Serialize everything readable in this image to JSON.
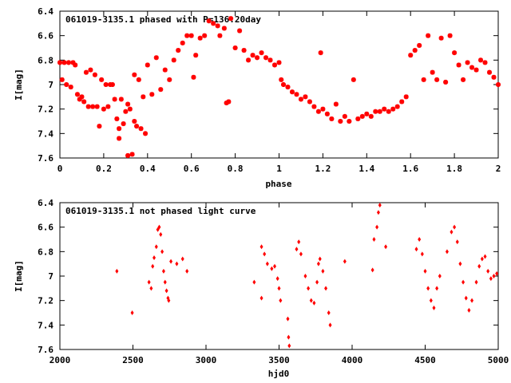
{
  "chart_data": [
    {
      "type": "scatter",
      "title": "061019-3135.1 phased with P=136.20day",
      "xlabel": "phase",
      "ylabel": "I[mag]",
      "xlim": [
        0,
        2
      ],
      "ylim": [
        7.6,
        6.4
      ],
      "y_inverted": true,
      "grid": false,
      "marker_color": "#ff0000",
      "marker": "star",
      "x_ticks": [
        "0",
        "0.2",
        "0.4",
        "0.6",
        "0.8",
        "1",
        "1.2",
        "1.4",
        "1.6",
        "1.8",
        "2"
      ],
      "y_ticks": [
        "6.4",
        "6.6",
        "6.8",
        "7",
        "7.2",
        "7.4",
        "7.6"
      ],
      "points": [
        [
          0.0,
          6.82
        ],
        [
          0.01,
          6.96
        ],
        [
          0.02,
          6.82
        ],
        [
          0.03,
          7.0
        ],
        [
          0.04,
          6.82
        ],
        [
          0.05,
          7.02
        ],
        [
          0.06,
          6.82
        ],
        [
          0.07,
          6.84
        ],
        [
          0.08,
          7.08
        ],
        [
          0.09,
          7.12
        ],
        [
          0.1,
          7.1
        ],
        [
          0.11,
          7.14
        ],
        [
          0.12,
          6.9
        ],
        [
          0.13,
          7.18
        ],
        [
          0.14,
          6.88
        ],
        [
          0.15,
          7.18
        ],
        [
          0.16,
          6.92
        ],
        [
          0.17,
          7.18
        ],
        [
          0.18,
          7.34
        ],
        [
          0.19,
          6.96
        ],
        [
          0.2,
          7.2
        ],
        [
          0.21,
          7.0
        ],
        [
          0.22,
          7.18
        ],
        [
          0.23,
          7.0
        ],
        [
          0.24,
          7.0
        ],
        [
          0.25,
          7.12
        ],
        [
          0.26,
          7.28
        ],
        [
          0.27,
          7.44
        ],
        [
          0.27,
          7.36
        ],
        [
          0.28,
          7.12
        ],
        [
          0.29,
          7.32
        ],
        [
          0.3,
          7.22
        ],
        [
          0.31,
          7.16
        ],
        [
          0.31,
          7.58
        ],
        [
          0.32,
          7.2
        ],
        [
          0.33,
          7.57
        ],
        [
          0.34,
          6.92
        ],
        [
          0.34,
          7.3
        ],
        [
          0.35,
          7.34
        ],
        [
          0.36,
          6.96
        ],
        [
          0.37,
          7.36
        ],
        [
          0.38,
          7.1
        ],
        [
          0.39,
          7.4
        ],
        [
          0.4,
          6.84
        ],
        [
          0.42,
          7.08
        ],
        [
          0.44,
          6.78
        ],
        [
          0.46,
          7.04
        ],
        [
          0.48,
          6.88
        ],
        [
          0.5,
          6.96
        ],
        [
          0.52,
          6.8
        ],
        [
          0.54,
          6.72
        ],
        [
          0.56,
          6.66
        ],
        [
          0.58,
          6.6
        ],
        [
          0.6,
          6.6
        ],
        [
          0.61,
          6.94
        ],
        [
          0.62,
          6.76
        ],
        [
          0.64,
          6.62
        ],
        [
          0.66,
          6.6
        ],
        [
          0.68,
          6.48
        ],
        [
          0.7,
          6.5
        ],
        [
          0.72,
          6.52
        ],
        [
          0.73,
          6.6
        ],
        [
          0.75,
          6.54
        ],
        [
          0.76,
          7.15
        ],
        [
          0.77,
          7.14
        ],
        [
          0.78,
          6.46
        ],
        [
          0.8,
          6.7
        ],
        [
          0.82,
          6.56
        ],
        [
          0.84,
          6.72
        ],
        [
          0.86,
          6.8
        ],
        [
          0.88,
          6.76
        ],
        [
          0.9,
          6.78
        ],
        [
          0.92,
          6.74
        ],
        [
          0.94,
          6.78
        ],
        [
          0.96,
          6.8
        ],
        [
          0.98,
          6.84
        ],
        [
          1.0,
          6.82
        ],
        [
          1.01,
          6.96
        ],
        [
          1.02,
          7.0
        ],
        [
          1.04,
          7.02
        ],
        [
          1.06,
          7.06
        ],
        [
          1.08,
          7.08
        ],
        [
          1.1,
          7.12
        ],
        [
          1.12,
          7.1
        ],
        [
          1.14,
          7.14
        ],
        [
          1.16,
          7.18
        ],
        [
          1.18,
          7.22
        ],
        [
          1.19,
          6.74
        ],
        [
          1.2,
          7.2
        ],
        [
          1.22,
          7.24
        ],
        [
          1.24,
          7.28
        ],
        [
          1.26,
          7.16
        ],
        [
          1.28,
          7.3
        ],
        [
          1.3,
          7.26
        ],
        [
          1.32,
          7.3
        ],
        [
          1.34,
          6.96
        ],
        [
          1.36,
          7.28
        ],
        [
          1.38,
          7.26
        ],
        [
          1.4,
          7.24
        ],
        [
          1.42,
          7.26
        ],
        [
          1.44,
          7.22
        ],
        [
          1.46,
          7.22
        ],
        [
          1.48,
          7.2
        ],
        [
          1.5,
          7.22
        ],
        [
          1.52,
          7.2
        ],
        [
          1.54,
          7.18
        ],
        [
          1.56,
          7.14
        ],
        [
          1.58,
          7.1
        ],
        [
          1.6,
          6.76
        ],
        [
          1.62,
          6.72
        ],
        [
          1.64,
          6.68
        ],
        [
          1.66,
          6.96
        ],
        [
          1.68,
          6.6
        ],
        [
          1.7,
          6.9
        ],
        [
          1.72,
          6.96
        ],
        [
          1.74,
          6.62
        ],
        [
          1.76,
          6.98
        ],
        [
          1.78,
          6.6
        ],
        [
          1.8,
          6.74
        ],
        [
          1.82,
          6.84
        ],
        [
          1.84,
          6.96
        ],
        [
          1.86,
          6.82
        ],
        [
          1.88,
          6.86
        ],
        [
          1.9,
          6.88
        ],
        [
          1.92,
          6.8
        ],
        [
          1.94,
          6.82
        ],
        [
          1.96,
          6.9
        ],
        [
          1.98,
          6.94
        ],
        [
          2.0,
          7.0
        ]
      ]
    },
    {
      "type": "scatter",
      "title": "061019-3135.1 not phased light curve",
      "xlabel": "hjd0",
      "ylabel": "I[mag]",
      "xlim": [
        2000,
        5000
      ],
      "ylim": [
        7.6,
        6.4
      ],
      "y_inverted": true,
      "grid": false,
      "marker_color": "#ff0000",
      "marker": "diamond",
      "x_ticks": [
        "2000",
        "2500",
        "3000",
        "3500",
        "4000",
        "4500",
        "5000"
      ],
      "y_ticks": [
        "6.4",
        "6.6",
        "6.8",
        "7",
        "7.2",
        "7.4",
        "7.6"
      ],
      "points": [
        [
          2390,
          6.96
        ],
        [
          2495,
          7.3
        ],
        [
          2610,
          7.05
        ],
        [
          2625,
          7.1
        ],
        [
          2635,
          6.92
        ],
        [
          2645,
          6.85
        ],
        [
          2660,
          6.76
        ],
        [
          2670,
          6.62
        ],
        [
          2680,
          6.6
        ],
        [
          2690,
          6.66
        ],
        [
          2700,
          6.8
        ],
        [
          2710,
          6.96
        ],
        [
          2720,
          7.05
        ],
        [
          2730,
          7.12
        ],
        [
          2740,
          7.18
        ],
        [
          2745,
          7.2
        ],
        [
          2760,
          6.88
        ],
        [
          2800,
          6.9
        ],
        [
          2840,
          6.86
        ],
        [
          2870,
          6.96
        ],
        [
          3330,
          7.05
        ],
        [
          3380,
          6.76
        ],
        [
          3400,
          6.82
        ],
        [
          3420,
          6.9
        ],
        [
          3450,
          6.94
        ],
        [
          3470,
          6.92
        ],
        [
          3490,
          7.02
        ],
        [
          3500,
          7.1
        ],
        [
          3510,
          7.2
        ],
        [
          3560,
          7.35
        ],
        [
          3565,
          7.5
        ],
        [
          3570,
          7.57
        ],
        [
          3380,
          7.18
        ],
        [
          3620,
          6.78
        ],
        [
          3635,
          6.72
        ],
        [
          3650,
          6.82
        ],
        [
          3680,
          7.0
        ],
        [
          3700,
          7.1
        ],
        [
          3720,
          7.2
        ],
        [
          3740,
          7.22
        ],
        [
          3760,
          7.05
        ],
        [
          3770,
          6.9
        ],
        [
          3780,
          6.86
        ],
        [
          3800,
          6.96
        ],
        [
          3820,
          7.1
        ],
        [
          3840,
          7.3
        ],
        [
          3850,
          7.4
        ],
        [
          3950,
          6.88
        ],
        [
          4140,
          6.95
        ],
        [
          4150,
          6.7
        ],
        [
          4170,
          6.6
        ],
        [
          4180,
          6.48
        ],
        [
          4190,
          6.42
        ],
        [
          4230,
          6.76
        ],
        [
          4440,
          6.78
        ],
        [
          4460,
          6.7
        ],
        [
          4480,
          6.82
        ],
        [
          4500,
          6.96
        ],
        [
          4520,
          7.1
        ],
        [
          4540,
          7.2
        ],
        [
          4560,
          7.26
        ],
        [
          4580,
          7.1
        ],
        [
          4600,
          7.0
        ],
        [
          4650,
          6.8
        ],
        [
          4680,
          6.64
        ],
        [
          4700,
          6.6
        ],
        [
          4720,
          6.72
        ],
        [
          4740,
          6.9
        ],
        [
          4760,
          7.05
        ],
        [
          4780,
          7.18
        ],
        [
          4800,
          7.28
        ],
        [
          4820,
          7.2
        ],
        [
          4850,
          7.05
        ],
        [
          4870,
          6.92
        ],
        [
          4890,
          6.86
        ],
        [
          4910,
          6.84
        ],
        [
          4930,
          6.96
        ],
        [
          4950,
          7.02
        ],
        [
          4970,
          7.0
        ],
        [
          4990,
          6.98
        ]
      ]
    }
  ]
}
